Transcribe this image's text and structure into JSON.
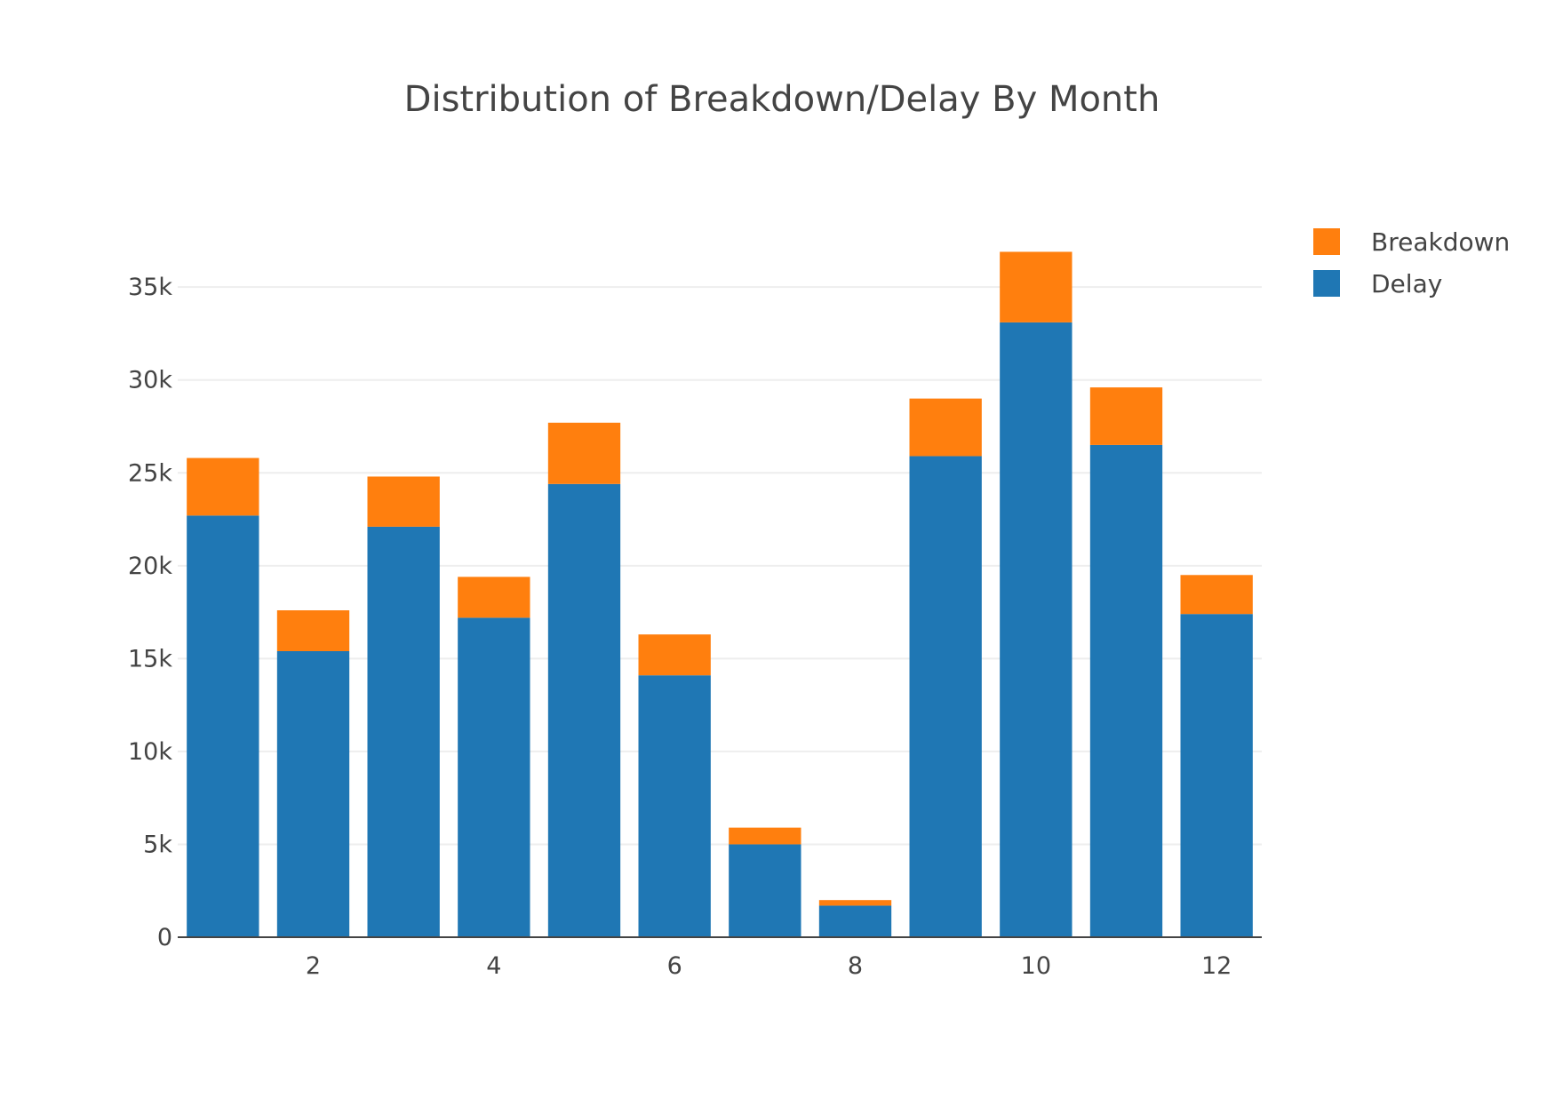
{
  "chart_data": {
    "type": "bar",
    "barmode": "stack",
    "title": "Distribution of Breakdown/Delay By Month",
    "xlabel": "",
    "ylabel": "",
    "x": [
      1,
      2,
      3,
      4,
      5,
      6,
      7,
      8,
      9,
      10,
      11,
      12
    ],
    "x_ticks": [
      2,
      4,
      6,
      8,
      10,
      12
    ],
    "x_tick_labels": [
      "2",
      "4",
      "6",
      "8",
      "10",
      "12"
    ],
    "ylim": [
      0,
      38500
    ],
    "y_ticks": [
      0,
      5000,
      10000,
      15000,
      20000,
      25000,
      30000,
      35000
    ],
    "y_tick_labels": [
      "0",
      "5k",
      "10k",
      "15k",
      "20k",
      "25k",
      "30k",
      "35k"
    ],
    "grid": true,
    "legend_position": "top-right",
    "series": [
      {
        "name": "Delay",
        "color": "#1f77b4",
        "values": [
          22700,
          15400,
          22100,
          17200,
          24400,
          14100,
          5000,
          1700,
          25900,
          33100,
          26500,
          17400
        ]
      },
      {
        "name": "Breakdown",
        "color": "#ff7f0e",
        "values": [
          3100,
          2200,
          2700,
          2200,
          3300,
          2200,
          900,
          300,
          3100,
          3800,
          3100,
          2100
        ]
      }
    ],
    "legend_order": [
      "Breakdown",
      "Delay"
    ]
  }
}
